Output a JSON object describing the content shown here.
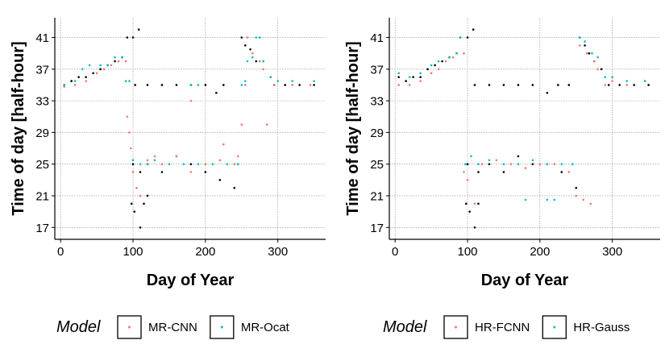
{
  "chart_data": [
    {
      "type": "scatter",
      "xlabel": "Day of Year",
      "ylabel": "Time of day [half-hour]",
      "xlim": [
        -8,
        366
      ],
      "ylim": [
        15.5,
        43.5
      ],
      "xticks": [
        0,
        100,
        200,
        300
      ],
      "yticks": [
        17,
        21,
        25,
        29,
        33,
        37,
        41
      ],
      "grid": true,
      "legend": {
        "title": "Model",
        "placement": "bottom"
      },
      "series": [
        {
          "name": "Reference",
          "color": "#000000",
          "in_legend": false
        },
        {
          "name": "MR-CNN",
          "color": "#F8766D",
          "in_legend": true
        },
        {
          "name": "MR-Ocat",
          "color": "#00BFC4",
          "in_legend": true
        }
      ],
      "points": {
        "Reference": [
          [
            5,
            35
          ],
          [
            15,
            35.5
          ],
          [
            25,
            36
          ],
          [
            35,
            36
          ],
          [
            45,
            36.5
          ],
          [
            55,
            37
          ],
          [
            65,
            37.5
          ],
          [
            75,
            38
          ],
          [
            85,
            38.5
          ],
          [
            92,
            41
          ],
          [
            100,
            41
          ],
          [
            108,
            42
          ],
          [
            103,
            35
          ],
          [
            120,
            35
          ],
          [
            140,
            35
          ],
          [
            160,
            35
          ],
          [
            180,
            35
          ],
          [
            200,
            35
          ],
          [
            215,
            34
          ],
          [
            225,
            35
          ],
          [
            100,
            25
          ],
          [
            110,
            24
          ],
          [
            120,
            25
          ],
          [
            140,
            24
          ],
          [
            160,
            26
          ],
          [
            180,
            25
          ],
          [
            200,
            24
          ],
          [
            220,
            23
          ],
          [
            240,
            22
          ],
          [
            98,
            20
          ],
          [
            102,
            19
          ],
          [
            110,
            17
          ],
          [
            115,
            20
          ],
          [
            120,
            21
          ],
          [
            250,
            41
          ],
          [
            255,
            40
          ],
          [
            262,
            39.5
          ],
          [
            270,
            38
          ],
          [
            280,
            38
          ],
          [
            290,
            36
          ],
          [
            295,
            35
          ],
          [
            310,
            35
          ],
          [
            330,
            35
          ],
          [
            350,
            35
          ]
        ],
        "MR-CNN": [
          [
            5,
            34.8
          ],
          [
            20,
            35
          ],
          [
            35,
            35.5
          ],
          [
            50,
            36.5
          ],
          [
            60,
            37
          ],
          [
            70,
            37.5
          ],
          [
            80,
            38
          ],
          [
            90,
            38
          ],
          [
            92,
            31
          ],
          [
            95,
            29
          ],
          [
            97,
            27
          ],
          [
            100,
            24
          ],
          [
            105,
            22
          ],
          [
            110,
            21
          ],
          [
            120,
            25.5
          ],
          [
            130,
            26
          ],
          [
            140,
            25
          ],
          [
            160,
            26
          ],
          [
            180,
            24
          ],
          [
            200,
            25
          ],
          [
            220,
            25.5
          ],
          [
            240,
            25
          ],
          [
            245,
            26
          ],
          [
            225,
            27.5
          ],
          [
            180,
            33
          ],
          [
            250,
            30
          ],
          [
            255,
            35
          ],
          [
            258,
            41
          ],
          [
            265,
            39
          ],
          [
            275,
            38
          ],
          [
            280,
            37
          ],
          [
            285,
            30
          ],
          [
            295,
            35
          ],
          [
            320,
            35
          ],
          [
            345,
            35
          ]
        ],
        "MR-Ocat": [
          [
            5,
            35
          ],
          [
            20,
            35.5
          ],
          [
            30,
            37
          ],
          [
            40,
            37.5
          ],
          [
            55,
            37.5
          ],
          [
            65,
            37.5
          ],
          [
            75,
            38.5
          ],
          [
            85,
            38.5
          ],
          [
            90,
            35.5
          ],
          [
            95,
            35.5
          ],
          [
            100,
            25.5
          ],
          [
            110,
            25
          ],
          [
            120,
            25
          ],
          [
            130,
            25.5
          ],
          [
            150,
            25
          ],
          [
            170,
            25
          ],
          [
            190,
            25
          ],
          [
            210,
            25
          ],
          [
            230,
            25
          ],
          [
            245,
            25
          ],
          [
            180,
            35
          ],
          [
            190,
            35
          ],
          [
            250,
            35
          ],
          [
            255,
            35.5
          ],
          [
            258,
            38
          ],
          [
            265,
            38.5
          ],
          [
            270,
            41
          ],
          [
            275,
            41
          ],
          [
            280,
            38
          ],
          [
            290,
            36
          ],
          [
            300,
            35.5
          ],
          [
            320,
            35.5
          ],
          [
            350,
            35.5
          ]
        ]
      }
    },
    {
      "type": "scatter",
      "xlabel": "Day of Year",
      "ylabel": "Time of day [half-hour]",
      "xlim": [
        -8,
        366
      ],
      "ylim": [
        15.5,
        43.5
      ],
      "xticks": [
        0,
        100,
        200,
        300
      ],
      "yticks": [
        17,
        21,
        25,
        29,
        33,
        37,
        41
      ],
      "grid": true,
      "legend": {
        "title": "Model",
        "placement": "bottom"
      },
      "series": [
        {
          "name": "Reference",
          "color": "#000000",
          "in_legend": false
        },
        {
          "name": "HR-FCNN",
          "color": "#F8766D",
          "in_legend": true
        },
        {
          "name": "HR-Gauss",
          "color": "#00BFC4",
          "in_legend": true
        }
      ],
      "points": {
        "Reference": [
          [
            5,
            36
          ],
          [
            15,
            35.5
          ],
          [
            25,
            36
          ],
          [
            35,
            36
          ],
          [
            45,
            37
          ],
          [
            55,
            37.5
          ],
          [
            65,
            38
          ],
          [
            75,
            38.5
          ],
          [
            85,
            39
          ],
          [
            90,
            41
          ],
          [
            100,
            41
          ],
          [
            108,
            42
          ],
          [
            110,
            35
          ],
          [
            130,
            35
          ],
          [
            150,
            35
          ],
          [
            170,
            35
          ],
          [
            190,
            35
          ],
          [
            210,
            34
          ],
          [
            225,
            35
          ],
          [
            240,
            35
          ],
          [
            100,
            25
          ],
          [
            115,
            24
          ],
          [
            130,
            25
          ],
          [
            150,
            24
          ],
          [
            170,
            26
          ],
          [
            190,
            25
          ],
          [
            210,
            25
          ],
          [
            230,
            24
          ],
          [
            250,
            22
          ],
          [
            98,
            20
          ],
          [
            103,
            19
          ],
          [
            110,
            17
          ],
          [
            115,
            20
          ],
          [
            255,
            41
          ],
          [
            262,
            40
          ],
          [
            268,
            39
          ],
          [
            275,
            38
          ],
          [
            285,
            37
          ],
          [
            295,
            35
          ],
          [
            310,
            35
          ],
          [
            330,
            35
          ],
          [
            350,
            35
          ]
        ],
        "HR-FCNN": [
          [
            5,
            35
          ],
          [
            20,
            35
          ],
          [
            35,
            35.5
          ],
          [
            50,
            36.5
          ],
          [
            60,
            37
          ],
          [
            70,
            38
          ],
          [
            80,
            38.5
          ],
          [
            95,
            39
          ],
          [
            95,
            24
          ],
          [
            100,
            23
          ],
          [
            110,
            20
          ],
          [
            120,
            25
          ],
          [
            140,
            25.5
          ],
          [
            160,
            25
          ],
          [
            180,
            24.5
          ],
          [
            200,
            25
          ],
          [
            220,
            25
          ],
          [
            240,
            24
          ],
          [
            250,
            21
          ],
          [
            260,
            20.5
          ],
          [
            270,
            20
          ],
          [
            255,
            40
          ],
          [
            265,
            39
          ],
          [
            275,
            38
          ],
          [
            280,
            37
          ],
          [
            290,
            35
          ],
          [
            300,
            35.5
          ],
          [
            320,
            35
          ],
          [
            345,
            35.5
          ]
        ],
        "HR-Gauss": [
          [
            5,
            36.5
          ],
          [
            20,
            36
          ],
          [
            35,
            36.5
          ],
          [
            50,
            37.5
          ],
          [
            60,
            38
          ],
          [
            75,
            38.5
          ],
          [
            85,
            39
          ],
          [
            90,
            41
          ],
          [
            97,
            25
          ],
          [
            105,
            26
          ],
          [
            115,
            25
          ],
          [
            130,
            25.5
          ],
          [
            150,
            25
          ],
          [
            170,
            25
          ],
          [
            190,
            25.5
          ],
          [
            210,
            25
          ],
          [
            230,
            25
          ],
          [
            245,
            25
          ],
          [
            180,
            20.5
          ],
          [
            210,
            20.5
          ],
          [
            220,
            20.5
          ],
          [
            255,
            41
          ],
          [
            262,
            40.5
          ],
          [
            272,
            39
          ],
          [
            280,
            38.5
          ],
          [
            290,
            36
          ],
          [
            300,
            36
          ],
          [
            320,
            35.5
          ],
          [
            345,
            35.5
          ]
        ]
      }
    }
  ]
}
